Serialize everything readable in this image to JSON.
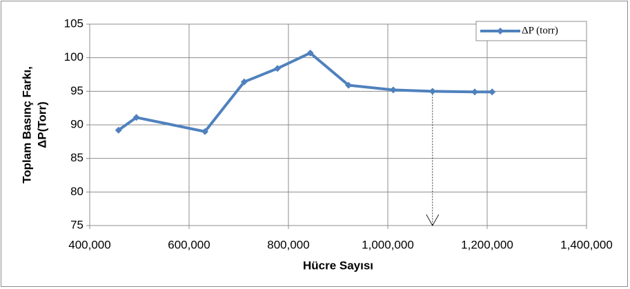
{
  "chart_data": {
    "type": "line",
    "x_label": "Hücre Sayısı",
    "y_label": [
      "Toplam Basınç Farkı,",
      "ΔP(Torr)"
    ],
    "x": [
      458000,
      494000,
      632000,
      711000,
      778000,
      844000,
      921000,
      1011000,
      1090000,
      1175000,
      1210000
    ],
    "series": [
      {
        "name": "ΔP (torr)",
        "color": "#4f81bd",
        "values": [
          89.2,
          91.1,
          89.0,
          96.4,
          98.4,
          100.7,
          95.9,
          95.2,
          95.0,
          94.9,
          94.9
        ]
      }
    ],
    "xlim": [
      400000,
      1400000
    ],
    "xticks": [
      {
        "value": 400000,
        "label": "400,000"
      },
      {
        "value": 600000,
        "label": "600,000"
      },
      {
        "value": 800000,
        "label": "800,000"
      },
      {
        "value": 1000000,
        "label": "1,000,000"
      },
      {
        "value": 1200000,
        "label": "1,200,000"
      },
      {
        "value": 1400000,
        "label": "1,400,000"
      }
    ],
    "ylim": [
      75,
      105
    ],
    "yticks": [
      75,
      80,
      85,
      90,
      95,
      100,
      105
    ],
    "grid": true,
    "legend": "top-right"
  }
}
